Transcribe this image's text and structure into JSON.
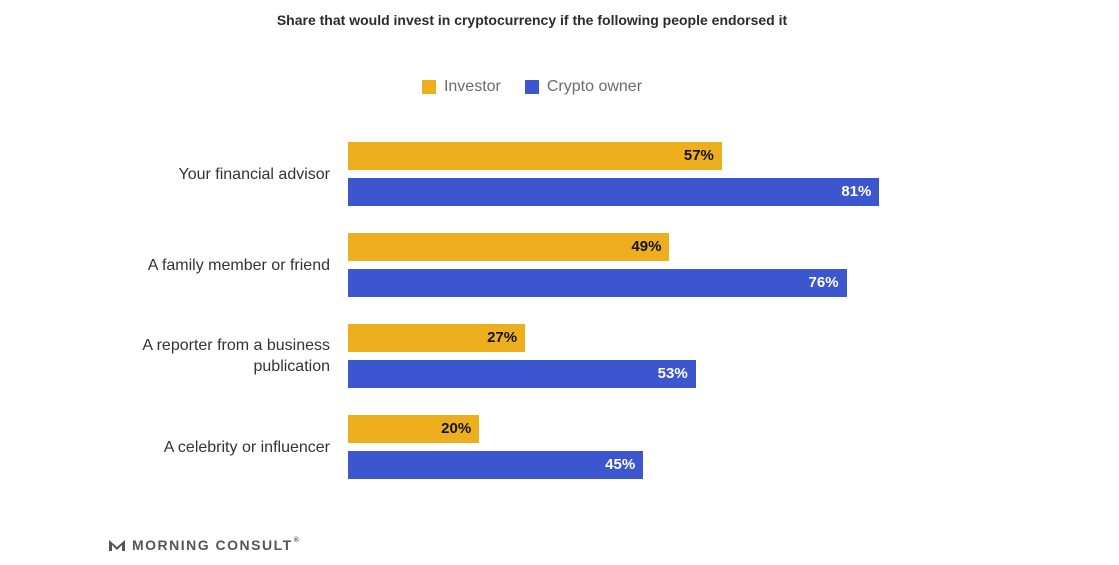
{
  "chart_data": {
    "type": "bar",
    "orientation": "horizontal",
    "title": "Share that would invest in cryptocurrency if the following people endorsed it",
    "categories": [
      [
        "Your financial advisor"
      ],
      [
        "A family member or friend"
      ],
      [
        "A reporter from a business",
        "publication"
      ],
      [
        "A celebrity or influencer"
      ]
    ],
    "series": [
      {
        "name": "Investor",
        "color": "#EEAF1F",
        "label_color": "#111111",
        "values": [
          57,
          49,
          27,
          20
        ],
        "labels": [
          "57%",
          "49%",
          "27%",
          "20%"
        ]
      },
      {
        "name": "Crypto owner",
        "color": "#3B56CF",
        "label_color": "#ffffff",
        "values": [
          81,
          76,
          53,
          45
        ],
        "labels": [
          "81%",
          "76%",
          "53%",
          "45%"
        ]
      }
    ],
    "xlim": [
      0,
      100
    ],
    "grid": false,
    "legend_position": "top-center"
  },
  "branding": {
    "logo_text": "MORNING CONSULT",
    "logo_mark": "®",
    "logo_icon": "morning-consult-m-icon"
  }
}
